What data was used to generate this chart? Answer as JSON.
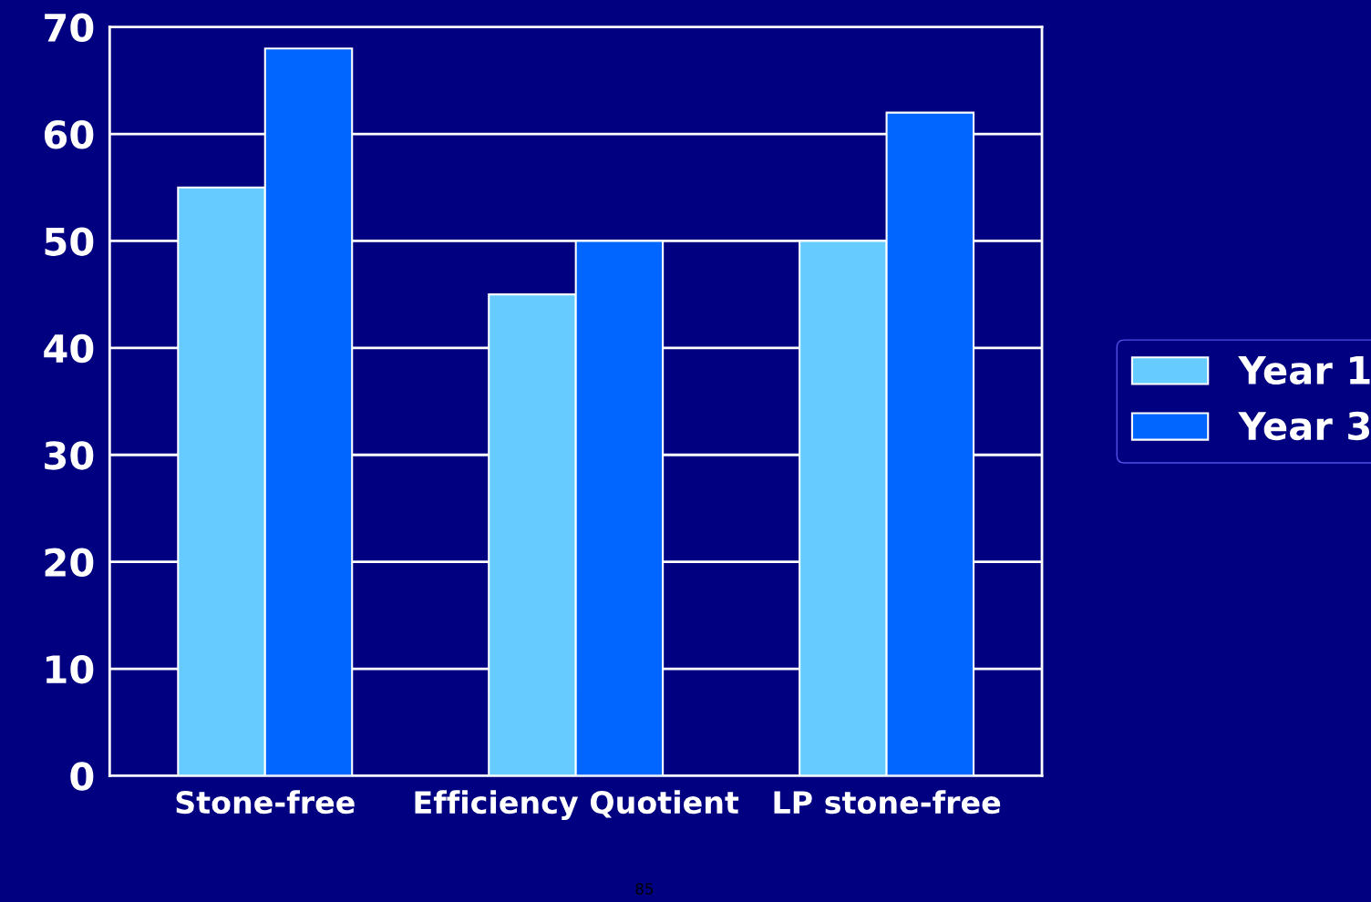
{
  "chart_data": {
    "type": "bar",
    "categories": [
      "Stone-free",
      "Efficiency Quotient",
      "LP stone-free"
    ],
    "series": [
      {
        "name": "Year 1",
        "color": "#66ccff",
        "values": [
          55,
          45,
          50
        ]
      },
      {
        "name": "Year 3",
        "color": "#0066ff",
        "values": [
          68,
          50,
          62
        ]
      }
    ],
    "ylim": [
      0,
      70
    ],
    "yticks": [
      0,
      10,
      20,
      30,
      40,
      50,
      60,
      70
    ],
    "grid": "y",
    "legend": "right",
    "annotations": [
      "85"
    ]
  }
}
